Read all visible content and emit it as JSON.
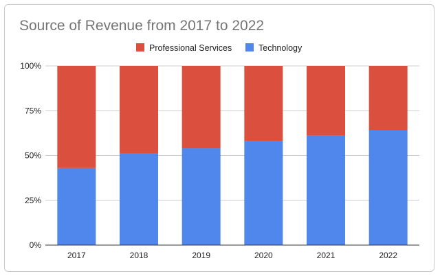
{
  "chart_data": {
    "type": "bar",
    "stacked": true,
    "percent_stacked": true,
    "title": "Source of Revenue from 2017 to 2022",
    "xlabel": "",
    "ylabel": "",
    "categories": [
      "2017",
      "2018",
      "2019",
      "2020",
      "2021",
      "2022"
    ],
    "series": [
      {
        "name": "Technology",
        "color": "#5087ec",
        "values": [
          43,
          51,
          54,
          58,
          61,
          64
        ]
      },
      {
        "name": "Professional Services",
        "color": "#db4f3f",
        "values": [
          57,
          49,
          46,
          42,
          39,
          36
        ]
      }
    ],
    "legend_order": [
      "Professional Services",
      "Technology"
    ],
    "ylim": [
      0,
      100
    ],
    "yticks": [
      "0%",
      "25%",
      "50%",
      "75%",
      "100%"
    ],
    "grid": true,
    "legend_position": "top"
  }
}
